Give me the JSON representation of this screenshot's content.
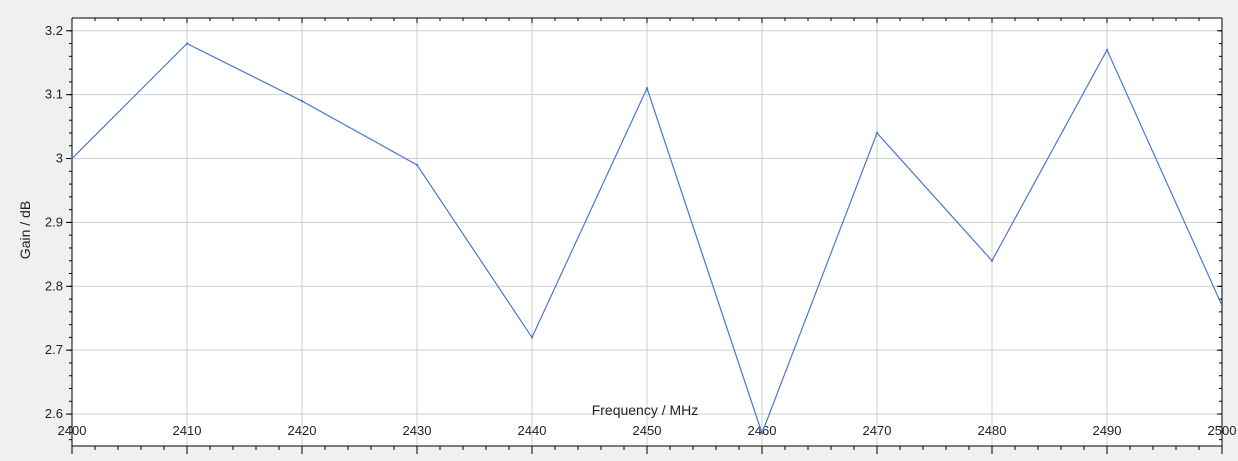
{
  "chart_data": {
    "type": "line",
    "xlabel": "Frequency / MHz",
    "ylabel": "Gain / dB",
    "xlim": [
      2400,
      2500
    ],
    "ylim": [
      2.55,
      3.22
    ],
    "x_ticks": [
      2400,
      2410,
      2420,
      2430,
      2440,
      2450,
      2460,
      2470,
      2480,
      2490,
      2500
    ],
    "y_ticks": [
      2.6,
      2.7,
      2.8,
      2.9,
      3,
      3.1,
      3.2
    ],
    "grid": true,
    "series": [
      {
        "x": [
          2400,
          2410,
          2420,
          2430,
          2440,
          2450,
          2460,
          2470,
          2480,
          2490,
          2500
        ],
        "values": [
          3.0,
          3.18,
          3.09,
          2.99,
          2.72,
          3.11,
          2.57,
          3.04,
          2.84,
          3.17,
          2.77
        ],
        "color": "#4a78d0"
      }
    ],
    "colors": {
      "background": "#f0f0f0",
      "plot_background": "#ffffff",
      "grid": "#cfcfcf",
      "axis": "#000000"
    }
  }
}
